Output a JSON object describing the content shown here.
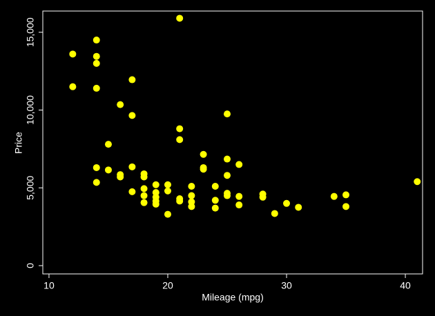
{
  "chart_data": {
    "type": "scatter",
    "xlabel": "Mileage (mpg)",
    "ylabel": "Price",
    "color": "#ffff00",
    "x": [
      12,
      12,
      14,
      14,
      14,
      14,
      14,
      14,
      15,
      15,
      16,
      16,
      16,
      17,
      17,
      17,
      17,
      18,
      18,
      18,
      18,
      18,
      19,
      19,
      19,
      19,
      19,
      20,
      20,
      20,
      21,
      21,
      21,
      21,
      21,
      22,
      22,
      22,
      22,
      23,
      23,
      23,
      24,
      24,
      24,
      25,
      25,
      25,
      25,
      25,
      26,
      26,
      26,
      28,
      28,
      29,
      30,
      31,
      34,
      35,
      35,
      41
    ],
    "y": [
      13600,
      11500,
      14500,
      13450,
      13000,
      11400,
      6300,
      5350,
      7800,
      6150,
      10350,
      5850,
      5700,
      11950,
      9650,
      6350,
      4750,
      5900,
      5700,
      4950,
      4500,
      4050,
      5200,
      4700,
      4400,
      4150,
      3950,
      5200,
      4800,
      3300,
      15900,
      8800,
      8100,
      4300,
      4150,
      5100,
      4500,
      4100,
      3800,
      7150,
      6300,
      6200,
      5100,
      4200,
      3700,
      9750,
      6850,
      5800,
      4650,
      4500,
      6500,
      4450,
      3900,
      4600,
      4400,
      3350,
      4000,
      3750,
      4450,
      4550,
      3800,
      5400
    ],
    "xlim": [
      9.48,
      41.45
    ],
    "ylim": [
      -532,
      16364
    ],
    "xticks": [
      10,
      20,
      30,
      40
    ],
    "yticks": [
      0,
      {
        "value": 5000,
        "label": "5,000"
      },
      {
        "value": 10000,
        "label": "10,000"
      },
      {
        "value": 15000,
        "label": "15,000"
      }
    ]
  }
}
